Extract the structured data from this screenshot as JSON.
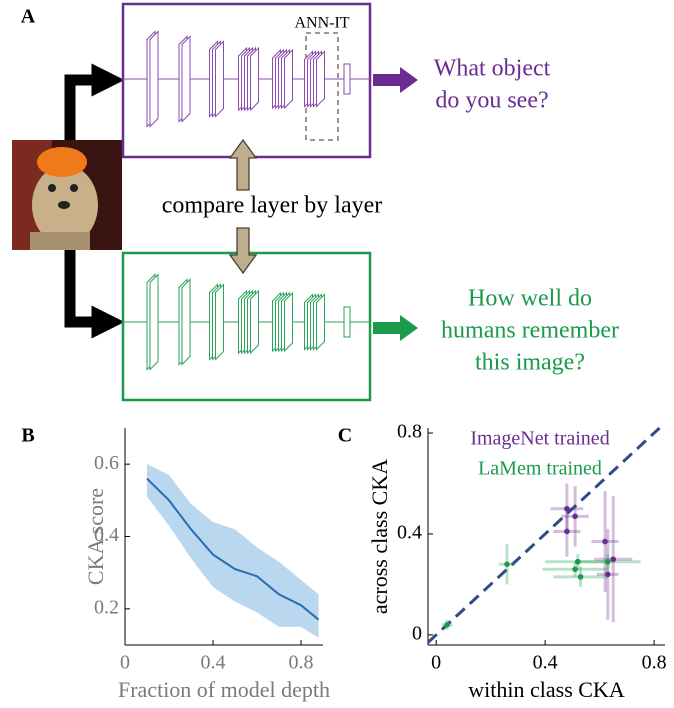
{
  "panel_a": {
    "label": "A",
    "roi_label": "ANN-IT",
    "top_output": [
      "What object",
      "do you see?"
    ],
    "compare": "compare layer by layer",
    "bottom_output": [
      "How well do",
      "humans remember",
      "this image?"
    ]
  },
  "chart_data": [
    {
      "type": "line",
      "panel_label": "B",
      "xlabel": "Fraction of model depth",
      "ylabel": "CKA score",
      "x": [
        0.1,
        0.2,
        0.3,
        0.4,
        0.5,
        0.6,
        0.7,
        0.8,
        0.88
      ],
      "series": [
        {
          "color": "#2a6cb0",
          "band_color": "#a9cdec",
          "values": [
            0.56,
            0.5,
            0.42,
            0.35,
            0.31,
            0.29,
            0.24,
            0.21,
            0.17
          ],
          "upper": [
            0.6,
            0.57,
            0.49,
            0.44,
            0.42,
            0.37,
            0.33,
            0.28,
            0.24
          ],
          "lower": [
            0.51,
            0.43,
            0.34,
            0.26,
            0.22,
            0.19,
            0.15,
            0.15,
            0.12
          ]
        }
      ],
      "xlim": [
        0,
        0.9
      ],
      "ylim": [
        0.1,
        0.7
      ],
      "xticks": [
        0,
        0.4,
        0.8
      ],
      "yticks": [
        0.2,
        0.4,
        0.6
      ]
    },
    {
      "type": "scatter",
      "panel_label": "C",
      "xlabel": "within class CKA",
      "ylabel": "across class CKA",
      "identity_line": true,
      "series": [
        {
          "name": "ImageNet trained",
          "color": "#6a2c91",
          "x": [
            0.48,
            0.51,
            0.48,
            0.62,
            0.65,
            0.63
          ],
          "values": [
            0.5,
            0.47,
            0.41,
            0.37,
            0.3,
            0.24
          ],
          "xerr": [
            0.06,
            0.05,
            0.05,
            0.05,
            0.07,
            0.04
          ],
          "yerr": [
            0.1,
            0.12,
            0.1,
            0.2,
            0.25,
            0.18
          ]
        },
        {
          "name": "LaMem trained",
          "color": "#1a9a4a",
          "x": [
            0.04,
            0.26,
            0.52,
            0.51,
            0.53,
            0.63
          ],
          "values": [
            0.04,
            0.28,
            0.29,
            0.26,
            0.23,
            0.29
          ],
          "xerr": [
            0.02,
            0.03,
            0.12,
            0.12,
            0.1,
            0.12
          ],
          "yerr": [
            0.02,
            0.08,
            0.03,
            0.03,
            0.04,
            0.03
          ]
        }
      ],
      "xlim": [
        -0.03,
        0.84
      ],
      "ylim": [
        -0.04,
        0.82
      ],
      "xticks": [
        0,
        0.4,
        0.8
      ],
      "yticks": [
        0,
        0.4,
        0.8
      ]
    }
  ]
}
